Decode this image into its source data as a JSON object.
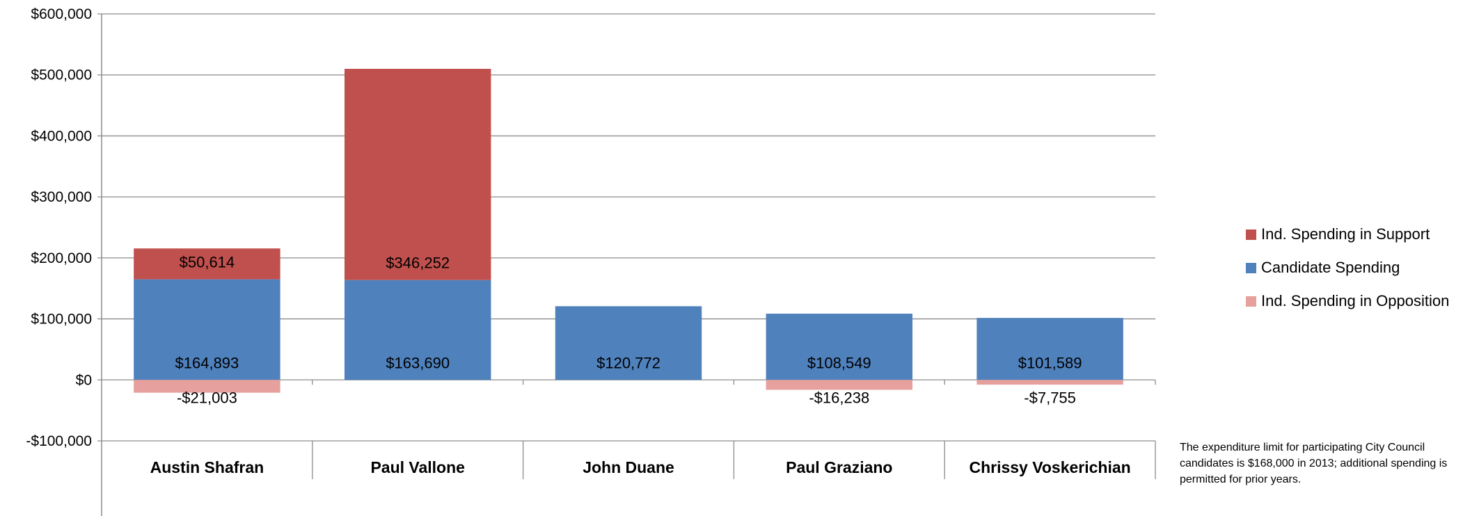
{
  "chart_data": {
    "type": "bar",
    "stacked": true,
    "categories": [
      "Austin Shafran",
      "Paul Vallone",
      "John Duane",
      "Paul Graziano",
      "Chrissy Voskerichian"
    ],
    "series": [
      {
        "name": "Candidate Spending",
        "color": "#4f81bd",
        "values": [
          164893,
          163690,
          120772,
          108549,
          101589
        ],
        "labels": [
          "$164,893",
          "$163,690",
          "$120,772",
          "$108,549",
          "$101,589"
        ]
      },
      {
        "name": "Ind. Spending in Support",
        "color": "#c0504d",
        "values": [
          50614,
          346252,
          0,
          0,
          0
        ],
        "labels": [
          "$50,614",
          "$346,252",
          "",
          "",
          ""
        ]
      },
      {
        "name": "Ind. Spending in Opposition",
        "color": "#e6a09e",
        "values": [
          -21003,
          0,
          0,
          -16238,
          -7755
        ],
        "labels": [
          "-$21,003",
          "",
          "",
          "-$16,238",
          "-$7,755"
        ]
      }
    ],
    "ylim": [
      -100000,
      600000
    ],
    "yticks": [
      600000,
      500000,
      400000,
      300000,
      200000,
      100000,
      0,
      -100000
    ],
    "ytick_labels": [
      "$600,000",
      "$500,000",
      "$400,000",
      "$300,000",
      "$200,000",
      "$100,000",
      "$0",
      "-$100,000"
    ],
    "grid": true,
    "legend": {
      "placement": "right",
      "entries": [
        {
          "label": "Ind. Spending in Support",
          "color": "#c0504d"
        },
        {
          "label": "Candidate Spending",
          "color": "#4f81bd"
        },
        {
          "label": "Ind. Spending in Opposition",
          "color": "#e6a09e"
        }
      ]
    },
    "note": "The expenditure limit for participating City Council candidates is $168,000 in 2013; additional spending is permitted for prior years."
  }
}
